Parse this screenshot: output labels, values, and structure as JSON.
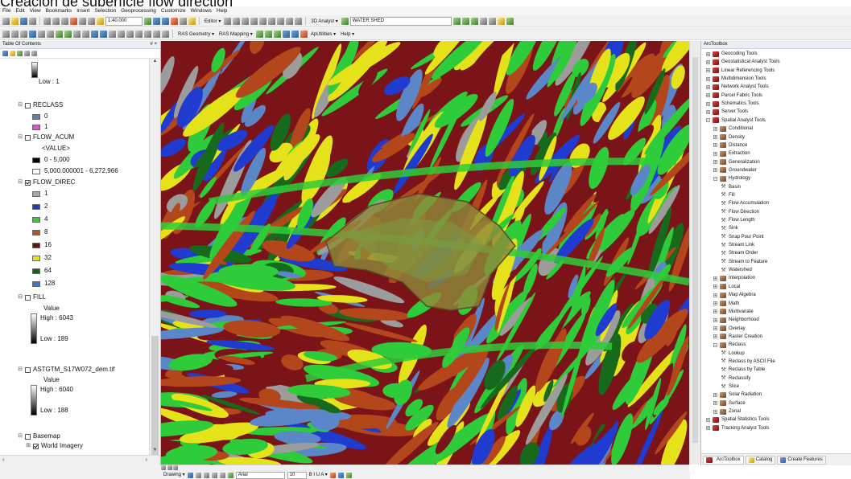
{
  "caption": "Creación de superficie flow direction",
  "menubar": [
    "File",
    "Edit",
    "View",
    "Bookmarks",
    "Insert",
    "Selection",
    "Geoprocessing",
    "Customize",
    "Windows",
    "Help"
  ],
  "toolbar1": {
    "scale": "1:40.000",
    "editor_label": "Editor ▾",
    "analyst_label": "3D Analyst ▾",
    "layer_combo": "WATER SHED"
  },
  "toolbar2": {
    "ras_geometry": "RAS Geometry ▾",
    "ras_mapping": "RAS Mapping ▾",
    "apu_utilities": "ApUtilities ▾",
    "help": "Help ▾"
  },
  "toc": {
    "title": "Table Of Contents",
    "close": "# ×",
    "top_low_label": "Low : 1",
    "layers": {
      "reclass": {
        "name": "RECLASS",
        "items": [
          {
            "label": "0",
            "color": "#6b7fa6"
          },
          {
            "label": "1",
            "color": "#d657c8"
          }
        ]
      },
      "flow_acum": {
        "name": "FLOW_ACUM",
        "field": "<VALUE>",
        "items": [
          {
            "label": "0 - 5,000",
            "color": "#000000"
          },
          {
            "label": "5,000.000001 - 6,272,966",
            "color": "#ffffff"
          }
        ]
      },
      "flow_direc": {
        "name": "FLOW_DIREC",
        "items": [
          {
            "label": "1",
            "color": "#a9a9a9"
          },
          {
            "label": "2",
            "color": "#1e3cc8"
          },
          {
            "label": "4",
            "color": "#33cc33"
          },
          {
            "label": "8",
            "color": "#c0501e"
          },
          {
            "label": "16",
            "color": "#6a1018"
          },
          {
            "label": "32",
            "color": "#e8e800"
          },
          {
            "label": "64",
            "color": "#146414"
          },
          {
            "label": "128",
            "color": "#3c78c8"
          }
        ]
      },
      "fill": {
        "name": "FILL",
        "value_label": "Value",
        "high": "High : 6043",
        "low": "Low : 189"
      },
      "dem": {
        "name": "ASTGTM_S17W072_dem.tif",
        "value_label": "Value",
        "high": "High : 6040",
        "low": "Low : 188"
      },
      "basemap": {
        "name": "Basemap",
        "child": "World Imagery"
      }
    }
  },
  "map": {
    "colors": {
      "maroon": "#7a1418",
      "red_brown": "#b4461c",
      "green": "#2ecc3a",
      "yellow": "#e6e21a",
      "blue": "#1f3bd0",
      "steel": "#5b86c7",
      "gray": "#9c9c9c",
      "dark_green": "#176a1c",
      "watershed": "#8f8a3a"
    }
  },
  "arctoolbox": {
    "title": "ArcToolbox",
    "items": [
      {
        "label": "Geocoding Tools",
        "type": "toolbox",
        "level": 0,
        "exp": "+"
      },
      {
        "label": "Geostatistical Analyst Tools",
        "type": "toolbox",
        "level": 0,
        "exp": "+"
      },
      {
        "label": "Linear Referencing Tools",
        "type": "toolbox",
        "level": 0,
        "exp": "+"
      },
      {
        "label": "Multidimension Tools",
        "type": "toolbox",
        "level": 0,
        "exp": "+"
      },
      {
        "label": "Network Analyst Tools",
        "type": "toolbox",
        "level": 0,
        "exp": "+"
      },
      {
        "label": "Parcel Fabric Tools",
        "type": "toolbox",
        "level": 0,
        "exp": "+"
      },
      {
        "label": "Schematics Tools",
        "type": "toolbox",
        "level": 0,
        "exp": "+"
      },
      {
        "label": "Server Tools",
        "type": "toolbox",
        "level": 0,
        "exp": "+"
      },
      {
        "label": "Spatial Analyst Tools",
        "type": "toolbox",
        "level": 0,
        "exp": "−"
      },
      {
        "label": "Conditional",
        "type": "toolset",
        "level": 1,
        "exp": "+"
      },
      {
        "label": "Density",
        "type": "toolset",
        "level": 1,
        "exp": "+"
      },
      {
        "label": "Distance",
        "type": "toolset",
        "level": 1,
        "exp": "+"
      },
      {
        "label": "Extraction",
        "type": "toolset",
        "level": 1,
        "exp": "+"
      },
      {
        "label": "Generalization",
        "type": "toolset",
        "level": 1,
        "exp": "+"
      },
      {
        "label": "Groundwater",
        "type": "toolset",
        "level": 1,
        "exp": "+"
      },
      {
        "label": "Hydrology",
        "type": "toolset",
        "level": 1,
        "exp": "−"
      },
      {
        "label": "Basin",
        "type": "tool",
        "level": 2
      },
      {
        "label": "Fill",
        "type": "tool",
        "level": 2
      },
      {
        "label": "Flow Accumulation",
        "type": "tool",
        "level": 2
      },
      {
        "label": "Flow Direction",
        "type": "tool",
        "level": 2
      },
      {
        "label": "Flow Length",
        "type": "tool",
        "level": 2
      },
      {
        "label": "Sink",
        "type": "tool",
        "level": 2
      },
      {
        "label": "Snap Pour Point",
        "type": "tool",
        "level": 2
      },
      {
        "label": "Stream Link",
        "type": "tool",
        "level": 2
      },
      {
        "label": "Stream Order",
        "type": "tool",
        "level": 2
      },
      {
        "label": "Stream to Feature",
        "type": "tool",
        "level": 2
      },
      {
        "label": "Watershed",
        "type": "tool",
        "level": 2
      },
      {
        "label": "Interpolation",
        "type": "toolset",
        "level": 1,
        "exp": "+"
      },
      {
        "label": "Local",
        "type": "toolset",
        "level": 1,
        "exp": "+"
      },
      {
        "label": "Map Algebra",
        "type": "toolset",
        "level": 1,
        "exp": "+"
      },
      {
        "label": "Math",
        "type": "toolset",
        "level": 1,
        "exp": "+"
      },
      {
        "label": "Multivariate",
        "type": "toolset",
        "level": 1,
        "exp": "+"
      },
      {
        "label": "Neighborhood",
        "type": "toolset",
        "level": 1,
        "exp": "+"
      },
      {
        "label": "Overlay",
        "type": "toolset",
        "level": 1,
        "exp": "+"
      },
      {
        "label": "Raster Creation",
        "type": "toolset",
        "level": 1,
        "exp": "+"
      },
      {
        "label": "Reclass",
        "type": "toolset",
        "level": 1,
        "exp": "−"
      },
      {
        "label": "Lookup",
        "type": "tool",
        "level": 2
      },
      {
        "label": "Reclass by ASCII File",
        "type": "tool",
        "level": 2
      },
      {
        "label": "Reclass by Table",
        "type": "tool",
        "level": 2
      },
      {
        "label": "Reclassify",
        "type": "tool",
        "level": 2
      },
      {
        "label": "Slice",
        "type": "tool",
        "level": 2
      },
      {
        "label": "Solar Radiation",
        "type": "toolset",
        "level": 1,
        "exp": "+"
      },
      {
        "label": "Surface",
        "type": "toolset",
        "level": 1,
        "exp": "+"
      },
      {
        "label": "Zonal",
        "type": "toolset",
        "level": 1,
        "exp": "+"
      },
      {
        "label": "Spatial Statistics Tools",
        "type": "toolbox",
        "level": 0,
        "exp": "+"
      },
      {
        "label": "Tracking Analyst Tools",
        "type": "toolbox",
        "level": 0,
        "exp": "+"
      }
    ],
    "tabs": [
      "ArcToolbox",
      "Catalog",
      "Create Features"
    ]
  },
  "drawing_toolbar": {
    "label": "Drawing ▾",
    "font": "Arial",
    "size": "10",
    "styles": "B  I  U  A ▾"
  }
}
